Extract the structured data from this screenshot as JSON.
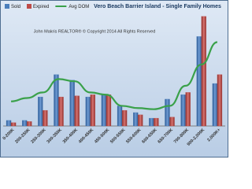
{
  "chart_data": {
    "type": "bar",
    "title": "Vero Beach Barrier Island - Single Family Homes",
    "annotation": "John Makris REALTOR® © Copyright 2014 All Rights Reserved",
    "categories": [
      "0-200K",
      "200-250K",
      "250-300K",
      "300-350K",
      "350-400K",
      "400-450K",
      "450-500K",
      "500-550K",
      "550-600K",
      "600-650K",
      "650-700K",
      "700-800K",
      "900-2,000K",
      "2,000K+"
    ],
    "series": [
      {
        "name": "Sold",
        "color": "#4a7ebb",
        "values": [
          5,
          5,
          26,
          46,
          41,
          26,
          28,
          18,
          12,
          7,
          24,
          28,
          80,
          38
        ]
      },
      {
        "name": "Expired",
        "color": "#be4b48",
        "values": [
          3,
          4,
          14,
          26,
          27,
          28,
          28,
          14,
          10,
          7,
          8,
          30,
          98,
          46
        ]
      },
      {
        "name": "Avg DOM",
        "color": "#3aa14a",
        "type": "line",
        "values": [
          22,
          25,
          30,
          42,
          40,
          30,
          28,
          18,
          16,
          15,
          18,
          36,
          55,
          75
        ]
      }
    ],
    "ylim": [
      0,
      100
    ]
  }
}
